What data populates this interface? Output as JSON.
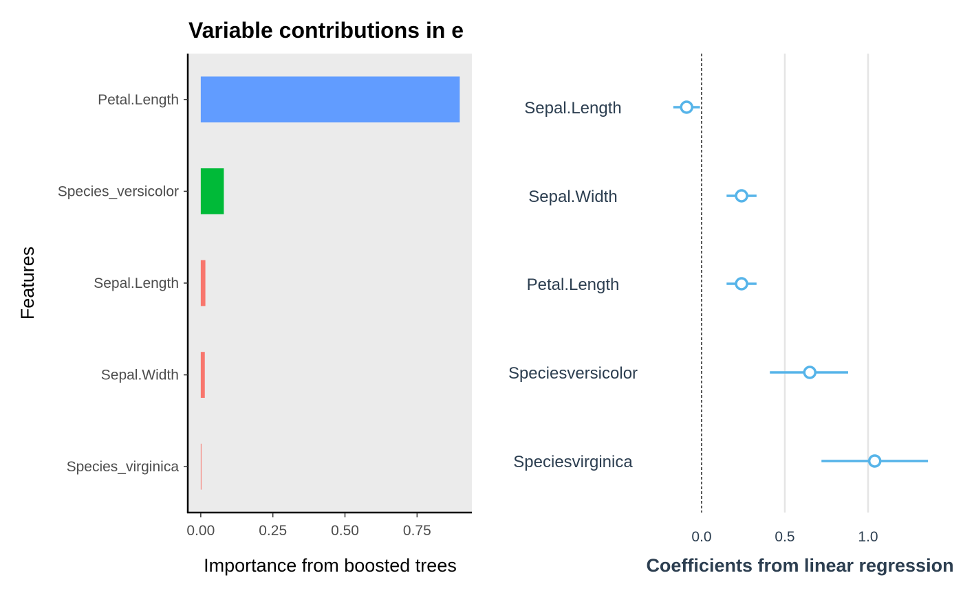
{
  "title": "Variable contributions in e",
  "colors": {
    "panel_bg": "#EBEBEB",
    "petal_length_bar": "#619CFF",
    "species_versicolor_bar": "#00BA38",
    "small_bars": "#F8766D",
    "coef_color": "#56B4E9",
    "coef_text": "#2C3E50",
    "grid": "#E5E5E5"
  },
  "chart_data": [
    {
      "type": "bar",
      "orientation": "horizontal",
      "categories": [
        "Petal.Length",
        "Species_versicolor",
        "Sepal.Length",
        "Sepal.Width",
        "Species_virginica"
      ],
      "values": [
        0.898,
        0.08,
        0.016,
        0.014,
        0.002
      ],
      "xlabel": "Importance from boosted trees",
      "ylabel": "Features",
      "xlim": [
        -0.045,
        0.94
      ],
      "xticks": [
        0.0,
        0.25,
        0.5,
        0.75
      ],
      "xtick_labels": [
        "0.00",
        "0.25",
        "0.50",
        "0.75"
      ],
      "grid": false
    },
    {
      "type": "scatter",
      "subtype": "coefficient-plot",
      "categories": [
        "Sepal.Length",
        "Sepal.Width",
        "Petal.Length",
        "Speciesversicolor",
        "Speciesvirginica"
      ],
      "estimates": [
        -0.09,
        0.24,
        0.24,
        0.65,
        1.04
      ],
      "lower": [
        -0.17,
        0.15,
        0.15,
        0.41,
        0.72
      ],
      "upper": [
        -0.01,
        0.33,
        0.33,
        0.88,
        1.36
      ],
      "reference_line": 0.0,
      "xlabel": "Coefficients from linear regression",
      "xticks": [
        0.0,
        0.5,
        1.0
      ],
      "xtick_labels": [
        "0.0",
        "0.5",
        "1.0"
      ],
      "grid": true
    }
  ]
}
